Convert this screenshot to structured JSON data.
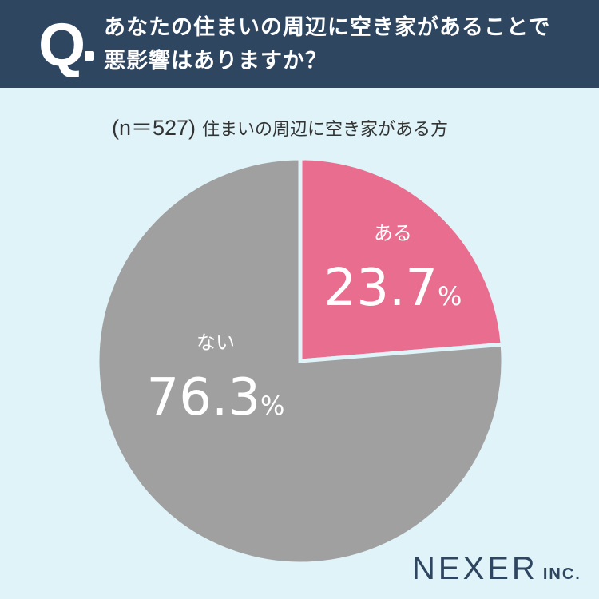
{
  "header": {
    "q_mark": "Q",
    "question_line1": "あなたの住まいの周辺に空き家があることで",
    "question_line2": "悪影響はありますか？"
  },
  "subtitle": {
    "n": "(n＝527)",
    "text": "住まいの周辺に空き家がある方"
  },
  "chart_data": {
    "type": "pie",
    "categories": [
      "ある",
      "ない"
    ],
    "values": [
      23.7,
      76.3
    ],
    "unit": "%",
    "colors": [
      "#e96d8f",
      "#a0a0a0"
    ],
    "start": "top, clockwise"
  },
  "logo": {
    "main": "NEXER",
    "inc": "INC."
  }
}
